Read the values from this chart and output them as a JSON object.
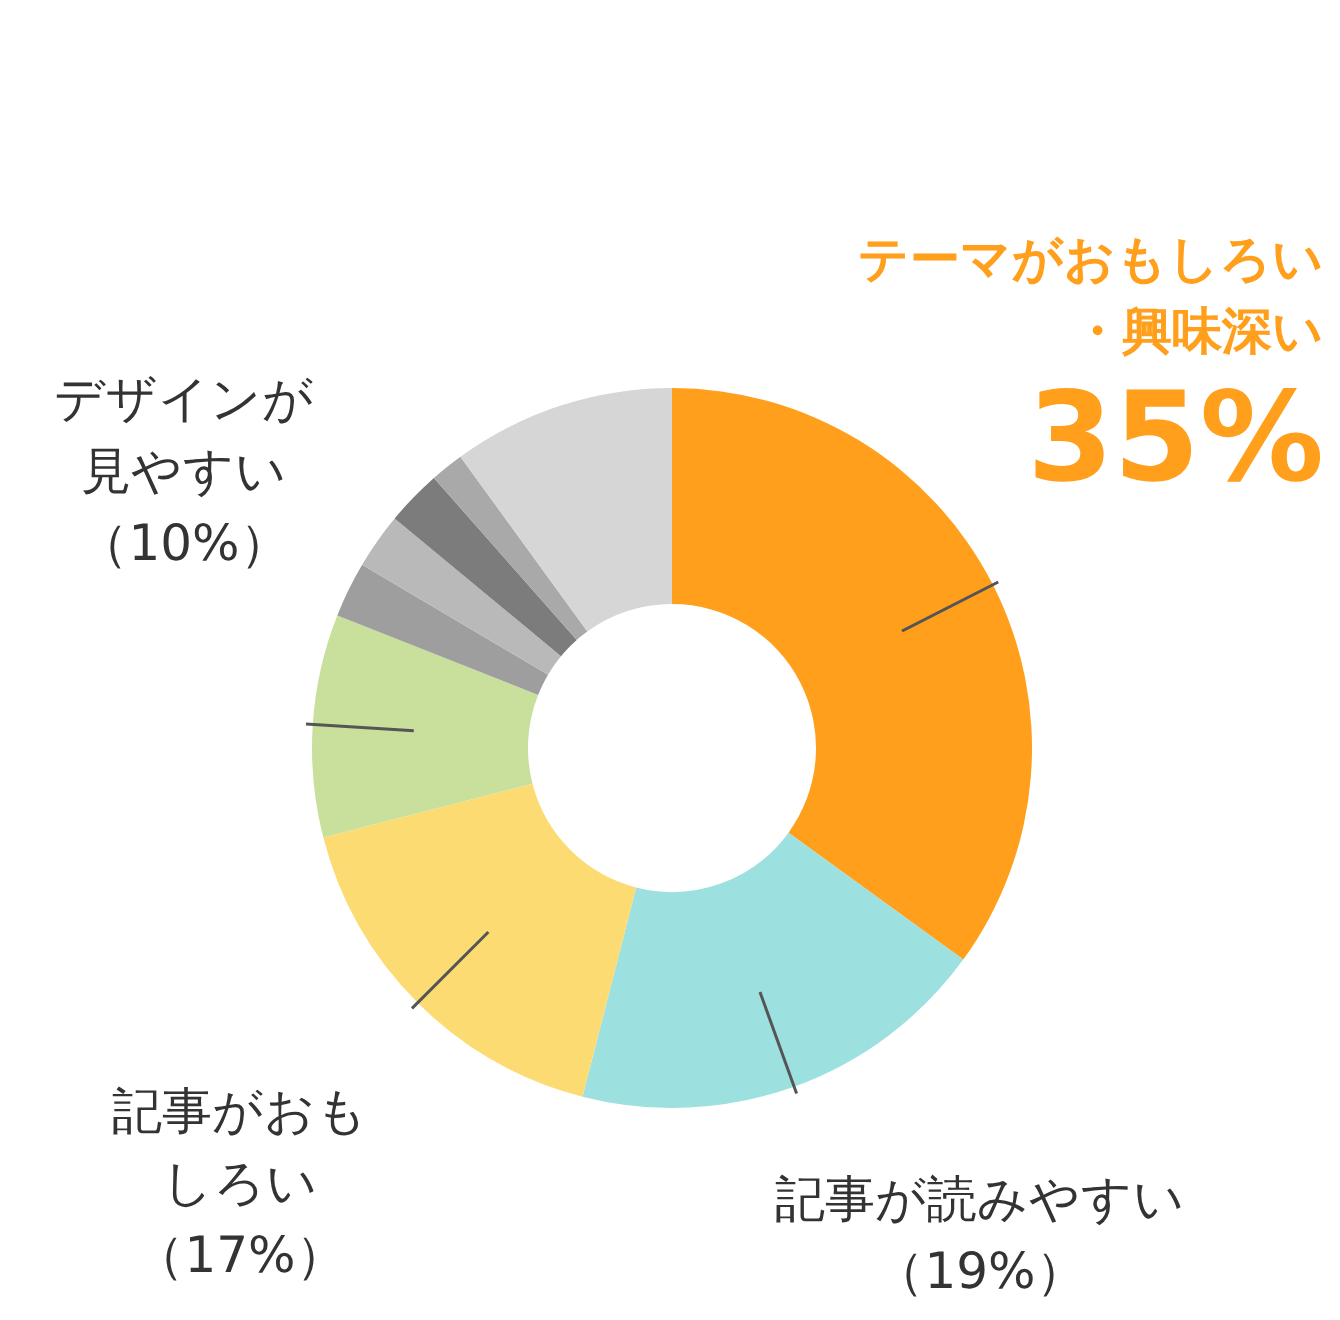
{
  "chart_data": {
    "type": "donut",
    "categories": [
      "テーマがおもしろい・興味深い",
      "記事が読みやすい",
      "記事がおもしろい",
      "デザインが見やすい",
      null,
      null,
      null,
      null,
      null
    ],
    "values": [
      35,
      19,
      17,
      10,
      2.5,
      2.5,
      2.5,
      1.5,
      10
    ],
    "colors": [
      "#ff9f1c",
      "#9de0e0",
      "#fddb73",
      "#c8e09c",
      "#9e9e9e",
      "#b9b9b9",
      "#7c7c7c",
      "#a9a9a9",
      "#d6d6d6"
    ],
    "value_labels": [
      "35%",
      "（19%）",
      "（17%）",
      "（10%）",
      null,
      null,
      null,
      null,
      null
    ]
  }
}
